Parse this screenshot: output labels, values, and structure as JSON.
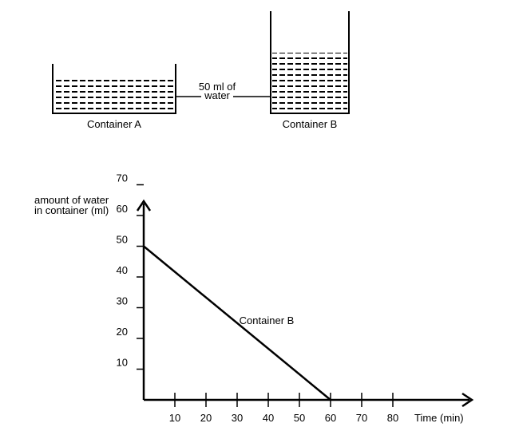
{
  "containers": {
    "a": {
      "label": "Container A"
    },
    "b": {
      "label": "Container B"
    },
    "connector_label_line1": "50 ml of",
    "connector_label_line2": "water"
  },
  "chart_data": {
    "type": "line",
    "ylabel_line1": "amount of water",
    "ylabel_line2": "in container (ml)",
    "xlabel": "Time (min)",
    "series": [
      {
        "name": "Container B",
        "x": [
          0,
          60
        ],
        "y": [
          50,
          0
        ]
      }
    ],
    "x_ticks": [
      10,
      20,
      30,
      40,
      50,
      60,
      70,
      80
    ],
    "y_ticks": [
      10,
      20,
      30,
      40,
      50,
      60,
      70
    ],
    "xlim": [
      0,
      100
    ],
    "ylim": [
      0,
      75
    ],
    "grid": false,
    "legend": "none"
  }
}
